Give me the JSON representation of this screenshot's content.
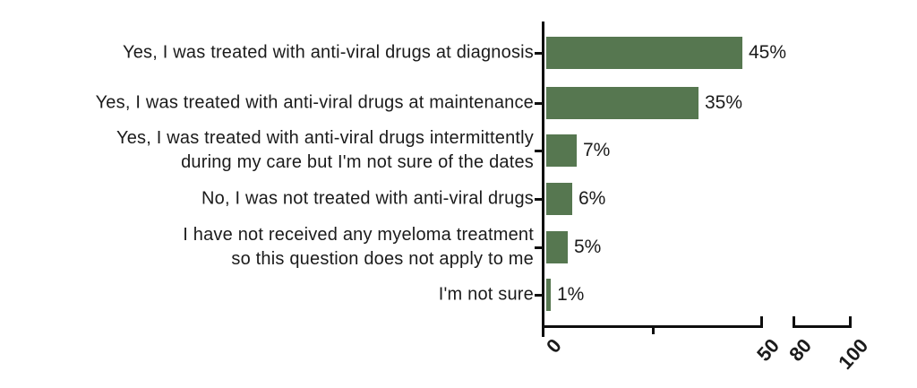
{
  "chart_data": {
    "type": "bar",
    "orientation": "horizontal",
    "title": "",
    "xlabel": "",
    "ylabel": "",
    "grid": false,
    "legend": false,
    "bar_color": "#567750",
    "axis_color": "#0e0e0e",
    "text_color": "#1b1b1b",
    "xlim": [
      0,
      100
    ],
    "axis_break": {
      "between": [
        50,
        80
      ]
    },
    "x_ticks": [
      {
        "value": 0,
        "label": "0"
      },
      {
        "value": 50,
        "label": "50"
      },
      {
        "value": 80,
        "label": "80"
      },
      {
        "value": 100,
        "label": "100"
      }
    ],
    "x_minor_ticks": [
      25
    ],
    "categories": [
      {
        "lines": [
          "Yes, I was treated with anti-viral drugs at diagnosis"
        ]
      },
      {
        "lines": [
          "Yes, I was treated with anti-viral drugs at maintenance"
        ]
      },
      {
        "lines": [
          "Yes, I was treated with anti-viral drugs intermittently",
          "during my care but I'm not sure of the dates"
        ]
      },
      {
        "lines": [
          "No, I was not treated with anti-viral drugs"
        ]
      },
      {
        "lines": [
          "I have not received any myeloma treatment",
          "so this question does not apply to me"
        ]
      },
      {
        "lines": [
          "I'm not sure"
        ]
      }
    ],
    "values": [
      45,
      35,
      7,
      6,
      5,
      1
    ],
    "value_labels": [
      "45%",
      "35%",
      "7%",
      "6%",
      "5%",
      "1%"
    ]
  }
}
